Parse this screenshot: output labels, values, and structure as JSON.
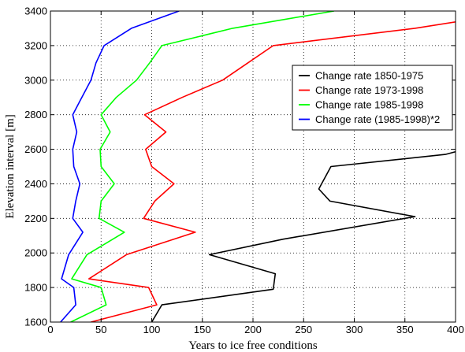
{
  "chart_data": {
    "type": "line",
    "title": "",
    "xlabel": "Years to ice free conditions",
    "ylabel": "Elevation interval [m]",
    "xlim": [
      0,
      400
    ],
    "ylim": [
      1600,
      3400
    ],
    "xticks": [
      0,
      50,
      100,
      150,
      200,
      250,
      300,
      350,
      400
    ],
    "yticks": [
      1600,
      1800,
      2000,
      2200,
      2400,
      2600,
      2800,
      3000,
      3200,
      3400
    ],
    "grid": true,
    "legend_position": "upper-right",
    "y": [
      1600,
      1700,
      1800,
      1900,
      2000,
      2100,
      2200,
      2300,
      2400,
      2500,
      2600,
      2700,
      2800,
      2900,
      3000,
      3100,
      3200,
      3300,
      3400
    ],
    "series": [
      {
        "name": "Change rate 1850-1975",
        "color": "#000000",
        "points": [
          [
            100,
            1600
          ],
          [
            110,
            1700
          ],
          [
            220,
            1790
          ],
          [
            222,
            1880
          ],
          [
            157,
            1990
          ],
          [
            230,
            2080
          ],
          [
            360,
            2210
          ],
          [
            276,
            2300
          ],
          [
            265,
            2370
          ],
          [
            277,
            2500
          ],
          [
            390,
            2570
          ],
          [
            403,
            2590
          ]
        ]
      },
      {
        "name": "Change rate 1973-1998",
        "color": "#ff0000",
        "points": [
          [
            40,
            1600
          ],
          [
            105,
            1700
          ],
          [
            97,
            1800
          ],
          [
            38,
            1850
          ],
          [
            75,
            1990
          ],
          [
            143,
            2120
          ],
          [
            92,
            2200
          ],
          [
            103,
            2300
          ],
          [
            122,
            2400
          ],
          [
            100,
            2500
          ],
          [
            94,
            2600
          ],
          [
            114,
            2700
          ],
          [
            93,
            2800
          ],
          [
            130,
            2900
          ],
          [
            170,
            3000
          ],
          [
            195,
            3100
          ],
          [
            220,
            3200
          ],
          [
            360,
            3300
          ],
          [
            403,
            3340
          ]
        ]
      },
      {
        "name": "Change rate 1985-1998",
        "color": "#00ff00",
        "points": [
          [
            20,
            1600
          ],
          [
            55,
            1700
          ],
          [
            50,
            1800
          ],
          [
            21,
            1850
          ],
          [
            36,
            1990
          ],
          [
            73,
            2120
          ],
          [
            48,
            2200
          ],
          [
            50,
            2300
          ],
          [
            63,
            2400
          ],
          [
            50,
            2500
          ],
          [
            49,
            2600
          ],
          [
            59,
            2700
          ],
          [
            50,
            2800
          ],
          [
            65,
            2900
          ],
          [
            85,
            3000
          ],
          [
            98,
            3100
          ],
          [
            110,
            3200
          ],
          [
            180,
            3300
          ],
          [
            280,
            3400
          ]
        ]
      },
      {
        "name": "Change rate (1985-1998)*2",
        "color": "#0000ff",
        "points": [
          [
            10,
            1600
          ],
          [
            25,
            1700
          ],
          [
            23,
            1800
          ],
          [
            11,
            1850
          ],
          [
            18,
            1990
          ],
          [
            32,
            2120
          ],
          [
            22,
            2200
          ],
          [
            25,
            2300
          ],
          [
            29,
            2400
          ],
          [
            23,
            2500
          ],
          [
            22,
            2600
          ],
          [
            26,
            2700
          ],
          [
            22,
            2800
          ],
          [
            31,
            2900
          ],
          [
            40,
            3000
          ],
          [
            45,
            3100
          ],
          [
            53,
            3200
          ],
          [
            80,
            3300
          ],
          [
            127,
            3400
          ]
        ]
      }
    ]
  }
}
